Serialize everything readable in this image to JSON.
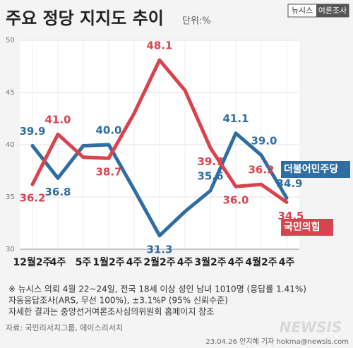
{
  "chart_data": {
    "type": "line",
    "title": "주요 정당 지지도 추이",
    "subtitle": "단위:%",
    "categories": [
      "12월2주",
      "4주",
      "5주",
      "1월2주",
      "4주",
      "2월2주",
      "4주",
      "3월2주",
      "4주",
      "4월2주",
      "4주"
    ],
    "series": [
      {
        "name": "더불어민주당",
        "color": "#2f6da3",
        "values": [
          39.9,
          36.8,
          39.9,
          40.0,
          35.7,
          31.3,
          33.6,
          35.6,
          41.1,
          39.0,
          34.9
        ],
        "value_labels": [
          "39.9",
          "36.8",
          null,
          "40.0",
          null,
          "31.3",
          null,
          "35.6",
          "41.1",
          "39.0",
          "34.9"
        ]
      },
      {
        "name": "국민의힘",
        "color": "#d9434e",
        "values": [
          36.2,
          41.0,
          38.8,
          38.7,
          43.0,
          48.1,
          45.2,
          39.7,
          36.0,
          36.2,
          34.5
        ],
        "value_labels": [
          "36.2",
          "41.0",
          null,
          "38.7",
          null,
          "48.1",
          null,
          "39.7",
          "36.0",
          "36.2",
          "34.5"
        ]
      }
    ],
    "ylim": [
      30,
      50
    ],
    "yticks": [
      30,
      35,
      40,
      45,
      50
    ],
    "grid": true
  },
  "badge": [
    "뉴시스",
    "여론조사"
  ],
  "notes": [
    "※ 뉴시스 의뢰 4월 22~24일, 전국 18세 이상 성인 남녀 1010명 (응답률 1.41%)",
    "자동응답조사(ARS, 무선 100%), ±3.1%P (95% 신뢰수준)",
    "자세한 결과는 중앙선거여론조사심의위원회 홈페이지 참조"
  ],
  "source": "자료: 국민리서치그룹, 에이스리서치",
  "watermark": "NEWSIS",
  "credit": "23.04.26 안지혜 기자 hokma@newsis.com"
}
